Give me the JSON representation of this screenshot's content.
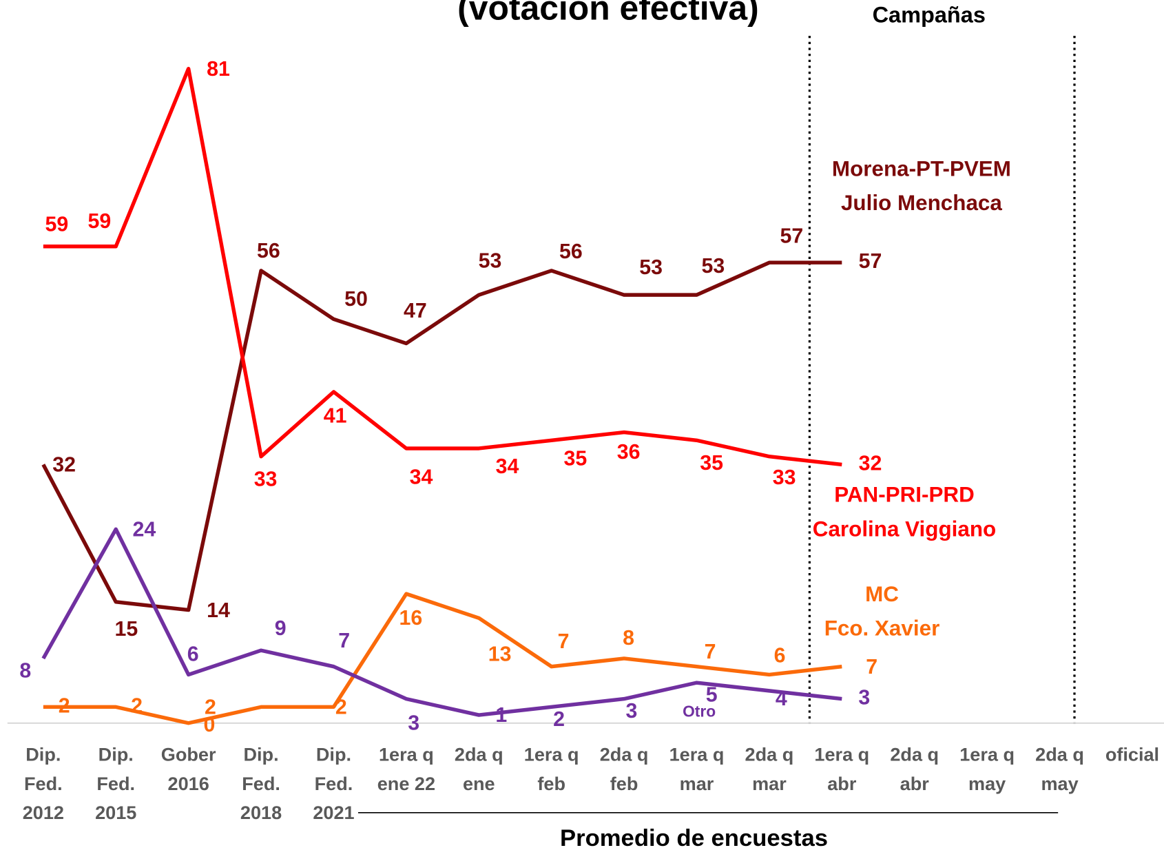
{
  "chart_data": {
    "type": "line",
    "title": "(votación efectiva)",
    "annotations": [
      "Campañas"
    ],
    "xlabel": "Promedio de encuestas",
    "categories": [
      [
        "Dip.",
        "Fed.",
        "2012"
      ],
      [
        "Dip.",
        "Fed.",
        "2015"
      ],
      [
        "Gober",
        "2016"
      ],
      [
        "Dip.",
        "Fed.",
        "2018"
      ],
      [
        "Dip.",
        "Fed.",
        "2021"
      ],
      [
        "1era q",
        "ene 22"
      ],
      [
        "2da q",
        "ene"
      ],
      [
        "1era q",
        "feb"
      ],
      [
        "2da q",
        "feb"
      ],
      [
        "1era q",
        "mar"
      ],
      [
        "2da q",
        "mar"
      ],
      [
        "1era q",
        "abr"
      ],
      [
        "2da q",
        "abr"
      ],
      [
        "1era q",
        "may"
      ],
      [
        "2da q",
        "may"
      ],
      [
        "oficial"
      ]
    ],
    "ylim": [
      0,
      81
    ],
    "series": [
      {
        "name": [
          "Morena-PT-PVEM",
          "Julio Menchaca"
        ],
        "color": "#7b0a0a",
        "values": [
          32,
          15,
          14,
          56,
          50,
          47,
          53,
          56,
          53,
          53,
          57,
          57,
          null,
          null,
          null,
          null
        ]
      },
      {
        "name": [
          "PAN-PRI-PRD",
          "Carolina Viggiano"
        ],
        "color": "#ff0000",
        "values": [
          59,
          59,
          81,
          33,
          41,
          34,
          34,
          35,
          36,
          35,
          33,
          32,
          null,
          null,
          null,
          null
        ]
      },
      {
        "name": [
          "MC",
          "Fco. Xavier"
        ],
        "color": "#fb6a0a",
        "values": [
          2,
          2,
          0,
          2,
          2,
          16,
          13,
          7,
          8,
          7,
          6,
          7,
          null,
          null,
          null,
          null
        ]
      },
      {
        "name": [
          "Otro"
        ],
        "color": "#7030a0",
        "values": [
          8,
          24,
          6,
          9,
          7,
          3,
          1,
          2,
          3,
          5,
          4,
          3,
          null,
          null,
          null,
          null
        ]
      }
    ]
  }
}
